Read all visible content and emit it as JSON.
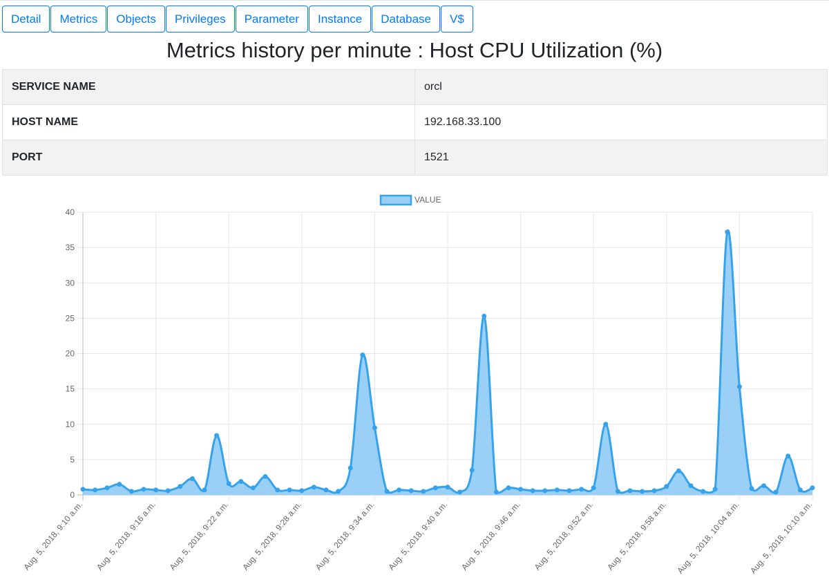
{
  "tabs": [
    "Detail",
    "Metrics",
    "Objects",
    "Privileges",
    "Parameter",
    "Instance",
    "Database",
    "V$"
  ],
  "page_title": "Metrics history per minute : Host CPU Utilization (%)",
  "info_rows": [
    {
      "key": "SERVICE NAME",
      "value": "orcl"
    },
    {
      "key": "HOST NAME",
      "value": "192.168.33.100"
    },
    {
      "key": "PORT",
      "value": "1521"
    }
  ],
  "colors": {
    "accent": "#007bff",
    "series_line": "#36a2eb",
    "series_fill": "#9ad0f5"
  },
  "chart_data": {
    "type": "area",
    "legend": "top",
    "grid": true,
    "ylim": [
      0,
      40
    ],
    "y_ticks": [
      0,
      5,
      10,
      15,
      20,
      25,
      30,
      35,
      40
    ],
    "x_tick_labels": [
      "Aug. 5, 2018, 9:10 a.m.",
      "Aug. 5, 2018, 9:16 a.m.",
      "Aug. 5, 2018, 9:22 a.m.",
      "Aug. 5, 2018, 9:28 a.m.",
      "Aug. 5, 2018, 9:34 a.m.",
      "Aug. 5, 2018, 9:40 a.m.",
      "Aug. 5, 2018, 9:46 a.m.",
      "Aug. 5, 2018, 9:52 a.m.",
      "Aug. 5, 2018, 9:58 a.m.",
      "Aug. 5, 2018, 10:04 a.m.",
      "Aug. 5, 2018, 10:10 a.m."
    ],
    "series": [
      {
        "name": "VALUE",
        "values": [
          0.8,
          0.7,
          1.0,
          1.5,
          0.5,
          0.8,
          0.7,
          0.6,
          1.2,
          2.3,
          0.7,
          8.4,
          1.6,
          1.9,
          1.0,
          2.6,
          0.7,
          0.7,
          0.6,
          1.1,
          0.7,
          0.5,
          3.8,
          19.8,
          9.5,
          0.5,
          0.7,
          0.6,
          0.5,
          1.0,
          1.1,
          0.4,
          3.5,
          25.3,
          0.4,
          1.0,
          0.8,
          0.6,
          0.6,
          0.7,
          0.6,
          0.8,
          1.0,
          10.0,
          0.5,
          0.6,
          0.5,
          0.6,
          1.2,
          3.4,
          1.3,
          0.5,
          0.8,
          37.2,
          15.3,
          0.9,
          1.3,
          0.4,
          5.5,
          0.7,
          1.0
        ]
      }
    ]
  }
}
